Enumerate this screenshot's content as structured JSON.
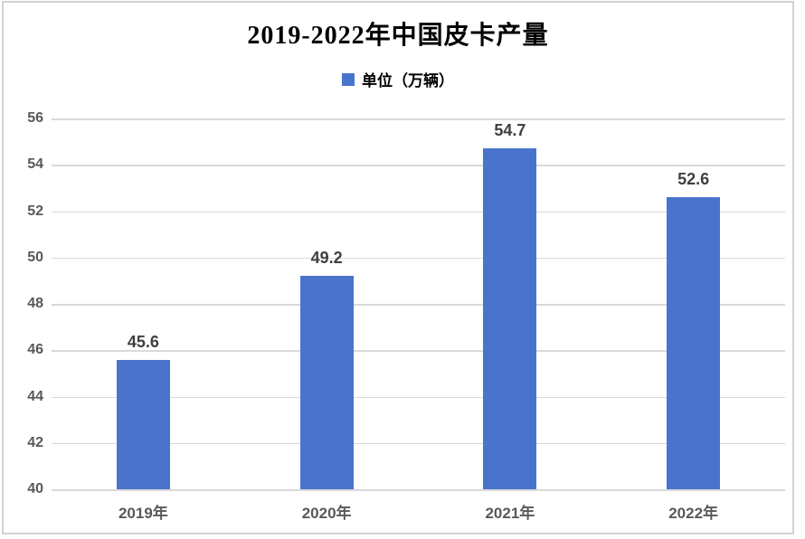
{
  "chart_data": {
    "type": "bar",
    "title": "2019-2022年中国皮卡产量",
    "legend_label": "单位（万辆）",
    "legend_position": "top-center",
    "categories": [
      "2019年",
      "2020年",
      "2021年",
      "2022年"
    ],
    "values": [
      45.6,
      49.2,
      54.7,
      52.6
    ],
    "yticks": [
      40,
      42,
      44,
      46,
      48,
      50,
      52,
      54,
      56
    ],
    "ylim": [
      40,
      56
    ],
    "grid": true,
    "xlabel": "",
    "ylabel": "",
    "colors": {
      "bar": "#4A74CC",
      "gridline": "#D9D9D9",
      "axis_text": "#595959",
      "data_label": "#3F3F3F",
      "title_text": "#000000",
      "frame_border": "#D2D2D2"
    }
  }
}
